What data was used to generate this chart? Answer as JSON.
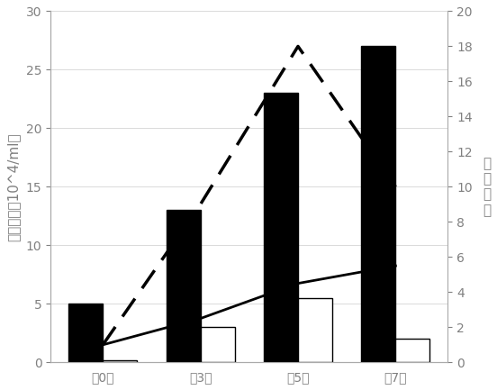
{
  "categories": [
    "第0天",
    "第3天",
    "第5天",
    "第7天"
  ],
  "black_bars": [
    5,
    13,
    23,
    27
  ],
  "white_bars": [
    0.2,
    3,
    5.5,
    2
  ],
  "solid_line": [
    1.0,
    2.5,
    4.5,
    5.5
  ],
  "dashed_line": [
    1.0,
    9.0,
    18.0,
    10.0
  ],
  "left_ylabel": "细胞数量（10^4/ml）",
  "right_ylabel": "扩增倍数",
  "left_ylim": [
    0,
    30
  ],
  "right_ylim": [
    0,
    20
  ],
  "left_yticks": [
    0,
    5,
    10,
    15,
    20,
    25,
    30
  ],
  "right_yticks": [
    0,
    2,
    4,
    6,
    8,
    10,
    12,
    14,
    16,
    18,
    20
  ],
  "bar_width": 0.35,
  "black_bar_color": "#000000",
  "white_bar_color": "#ffffff",
  "white_bar_edge_color": "#000000",
  "solid_line_color": "#000000",
  "dashed_line_color": "#000000",
  "background_color": "#ffffff",
  "font_size": 11,
  "tick_font_size": 10,
  "label_color": "#808080"
}
